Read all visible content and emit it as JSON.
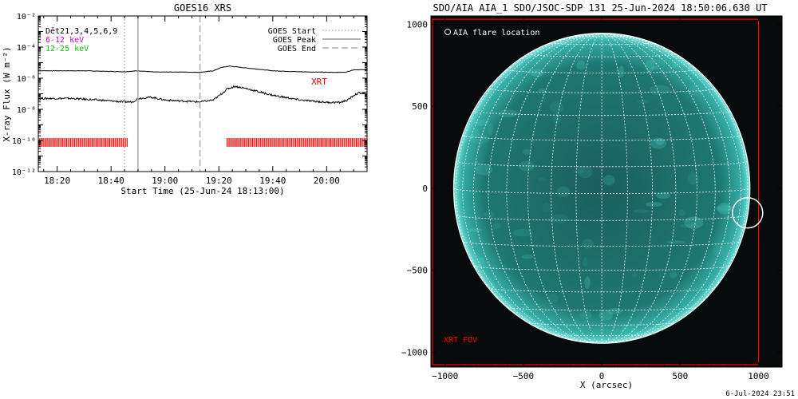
{
  "chart_data": [
    {
      "type": "line",
      "title": "GOES16 XRS",
      "xlabel": "Start Time (25-Jun-24 18:13:00)",
      "ylabel": "X-ray Flux (W m⁻²)",
      "yscale": "log",
      "ylim": [
        1e-12,
        0.01
      ],
      "xlim": [
        "18:13",
        "20:15"
      ],
      "x_ticks": [
        "18:20",
        "18:40",
        "19:00",
        "19:20",
        "19:40",
        "20:00"
      ],
      "y_ticks": [
        "10⁻¹²",
        "10⁻¹⁰",
        "10⁻⁸",
        "10⁻⁶",
        "10⁻⁴",
        "10⁻²"
      ],
      "legend_left": [
        {
          "label": "Dēt21,3,4,5,6,9",
          "color": "#000000"
        },
        {
          "label": "6-12 keV",
          "color": "#cc00cc"
        },
        {
          "label": "12-25 keV",
          "color": "#00cc00"
        }
      ],
      "legend_right": [
        {
          "label": "GOES Start",
          "style": "dotted"
        },
        {
          "label": "GOES Peak",
          "style": "solid"
        },
        {
          "label": "GOES End",
          "style": "dashed"
        }
      ],
      "annotation": "XRT",
      "series": [
        {
          "color": "#000000",
          "x": [
            "18:13",
            "18:30",
            "18:45",
            "18:50",
            "18:56",
            "19:05",
            "19:13",
            "19:18",
            "19:21",
            "19:24",
            "19:28",
            "19:40",
            "19:50",
            "20:00",
            "20:07",
            "20:10",
            "20:15"
          ],
          "y": [
            3e-06,
            3e-06,
            2.6e-06,
            3e-06,
            2.5e-06,
            2.5e-06,
            2.4e-06,
            3e-06,
            5e-06,
            6e-06,
            5e-06,
            3e-06,
            2.6e-06,
            2.4e-06,
            2.4e-06,
            3.5e-06,
            3.5e-06
          ]
        },
        {
          "color": "#000000",
          "x": [
            "18:13",
            "18:25",
            "18:35",
            "18:45",
            "18:48",
            "18:50",
            "18:55",
            "19:00",
            "19:05",
            "19:13",
            "19:18",
            "19:21",
            "19:23",
            "19:26",
            "19:30",
            "19:40",
            "19:50",
            "20:00",
            "20:05",
            "20:08",
            "20:10",
            "20:12",
            "20:15"
          ],
          "y": [
            5e-08,
            5e-08,
            4e-08,
            3e-08,
            3e-08,
            5e-08,
            6e-08,
            4e-08,
            3.5e-08,
            3e-08,
            4e-08,
            1e-07,
            2e-07,
            3e-07,
            2.2e-07,
            8e-08,
            4e-08,
            2.8e-08,
            2.8e-08,
            4e-08,
            8e-08,
            1.1e-07,
            1.2e-07
          ]
        }
      ],
      "vertical_lines": [
        {
          "label": "GOES Start",
          "x": "18:45",
          "style": "dotted"
        },
        {
          "label": "GOES Peak",
          "x": "18:50",
          "style": "solid"
        },
        {
          "label": "GOES End",
          "x": "19:13",
          "style": "dashed"
        }
      ],
      "xrt_coverage": [
        [
          "18:13",
          "18:46"
        ],
        [
          "19:23",
          "20:15"
        ]
      ],
      "xrt_color": "#ff0000"
    },
    {
      "type": "image",
      "title": "SDO/AIA AIA_1 SDO/JSOC-SDP 131 25-Jun-2024 18:50:06.630 UT",
      "xlabel": "X (arcsec)",
      "ylabel": "",
      "xlim": [
        -1090,
        1150
      ],
      "ylim": [
        -1090,
        1050
      ],
      "x_ticks": [
        "−1000",
        "−500",
        "0",
        "500",
        "1000"
      ],
      "y_ticks": [
        "−1000",
        "−500",
        "0",
        "500",
        "1000"
      ],
      "legend": "AIA flare location",
      "solar_radius_arcsec": 945,
      "flare_location": [
        930,
        -150
      ],
      "xrt_fov_label": "XRT FOV",
      "xrt_fov": {
        "x": [
          -1100,
          1000
        ],
        "y": [
          -1075,
          1030
        ]
      },
      "disk_color": "#1f8c8c",
      "fov_color": "#ff0000"
    }
  ],
  "footer": "6-Jul-2024 23:51"
}
